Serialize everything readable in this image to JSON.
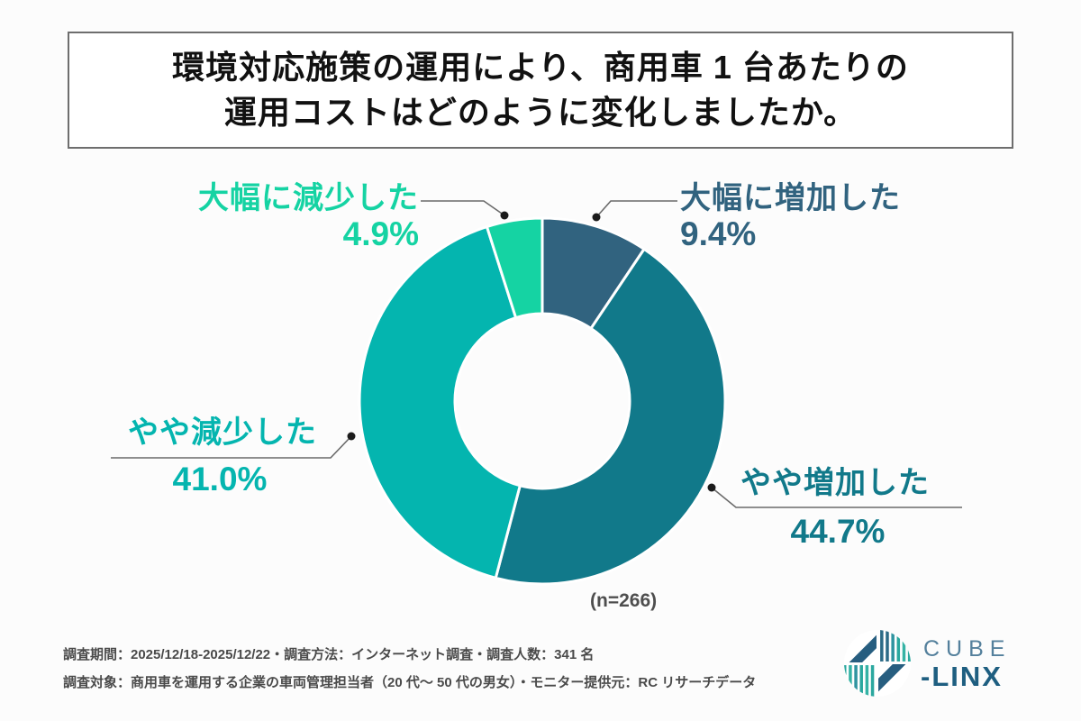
{
  "title": {
    "line1": "環境対応施策の運用により、商用車 1 台あたりの",
    "line2": "運用コストはどのように変化しましたか。"
  },
  "chart_data": {
    "type": "pie",
    "title": "環境対応施策の運用により、商用車1台あたりの運用コストはどのように変化しましたか。",
    "sample_label": "(n=266)",
    "start_angle_deg": -90,
    "direction": "clockwise",
    "donut_hole_ratio": 0.478,
    "segments": [
      {
        "label": "大幅に増加した",
        "value": 9.4,
        "display": "9.4%",
        "color": "#31637f"
      },
      {
        "label": "やや増加した",
        "value": 44.7,
        "display": "44.7%",
        "color": "#11798a"
      },
      {
        "label": "やや減少した",
        "value": 41.0,
        "display": "41.0%",
        "color": "#04b5af"
      },
      {
        "label": "大幅に減少した",
        "value": 4.9,
        "display": "4.9%",
        "color": "#15d3a3"
      }
    ]
  },
  "footer": {
    "line1": "調査期間：2025/12/18-2025/12/22・調査方法：インターネット調査・調査人数：341 名",
    "line2": "調査対象：商用車を運用する企業の車両管理担当者（20 代～ 50 代の男女）・モニター提供元：RC リサーチデータ"
  },
  "logo": {
    "brand_top": "CUBE",
    "brand_bottom": "-LINX"
  },
  "colors": {
    "background": "#fcfcfc",
    "title_text": "#111111",
    "title_border": "#6e6e6e",
    "leader_line": "#6a6a6a",
    "leader_dot": "#1b1b1b",
    "footer_text": "#4a4a4a",
    "logo_cube": "#54809c",
    "logo_linx": "#1e5e80"
  }
}
